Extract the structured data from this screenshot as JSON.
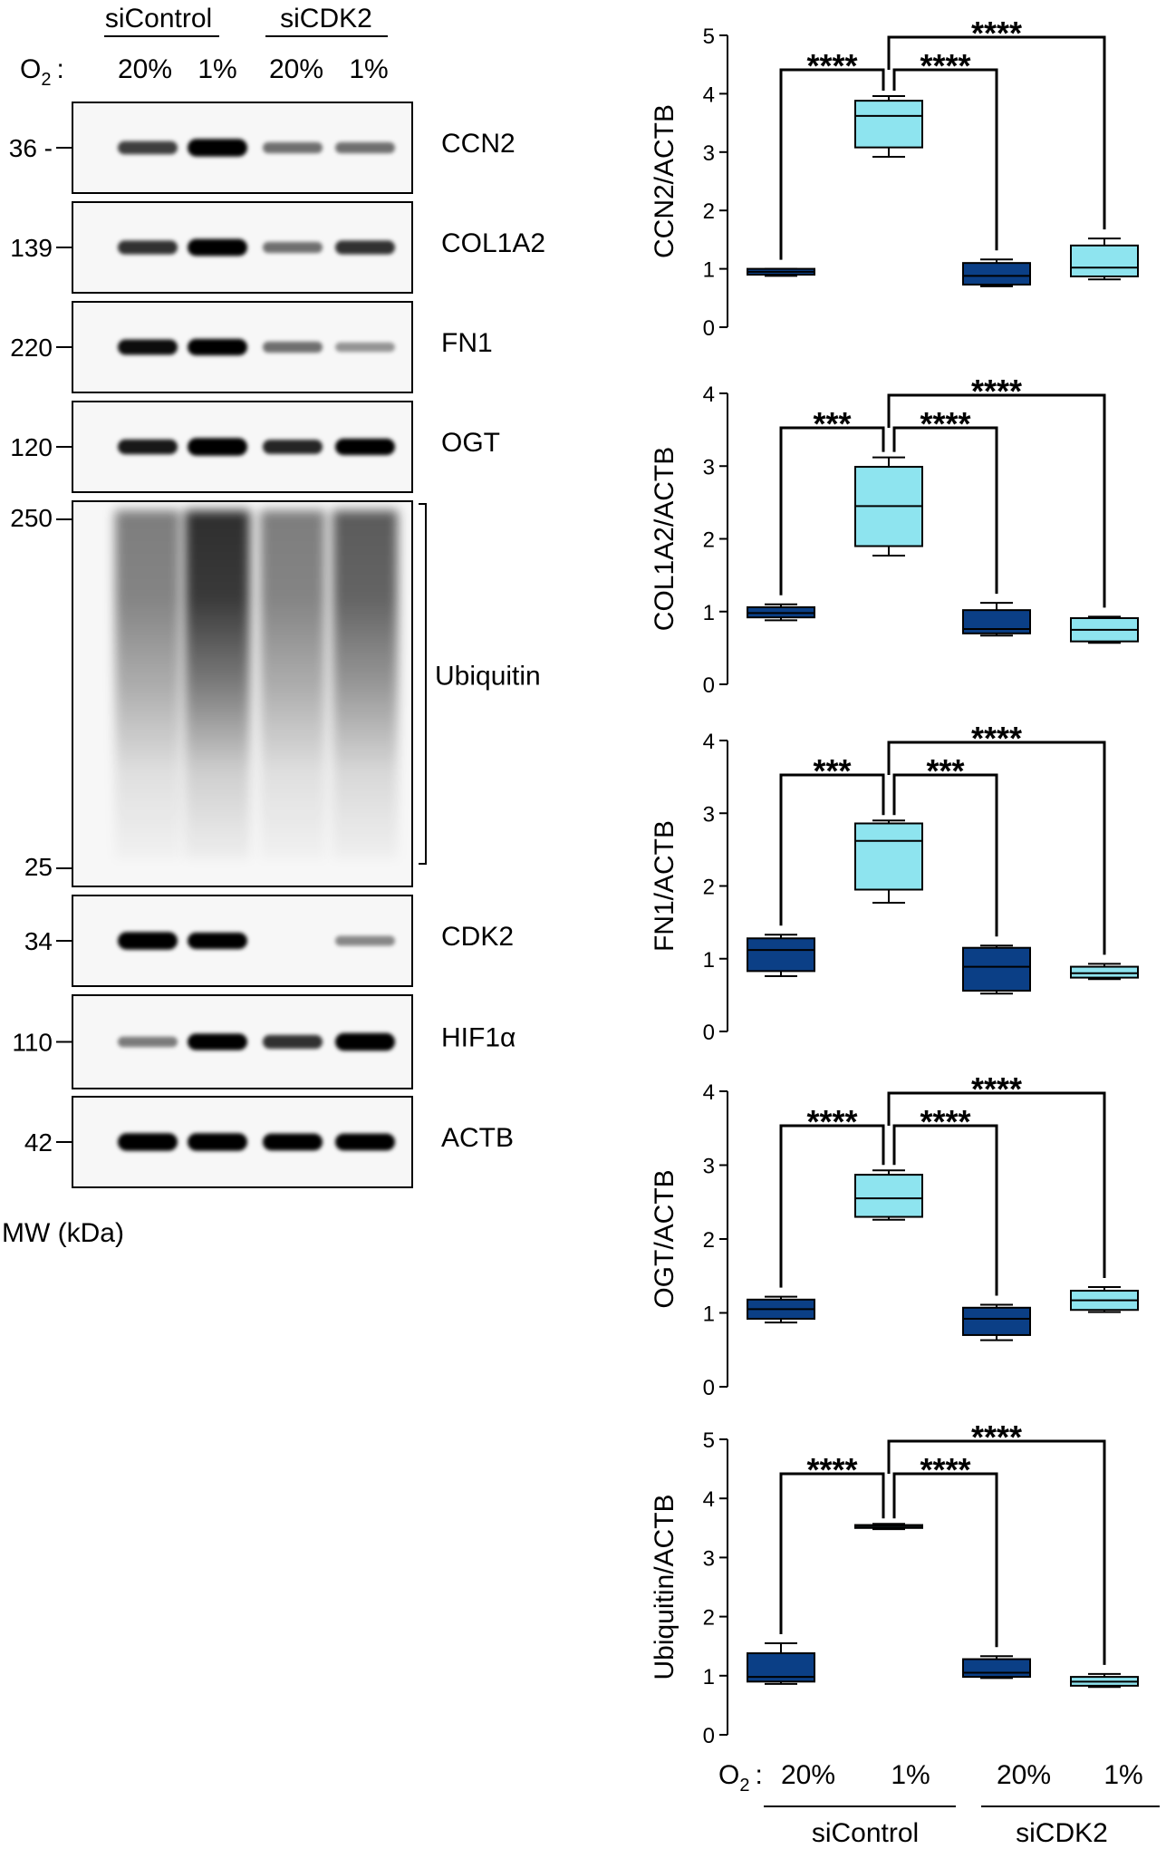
{
  "western_blot": {
    "groups": [
      "siControl",
      "siCDK2"
    ],
    "o2_label_main": "O",
    "o2_label_sub": "2",
    "o2_label_colon": ":",
    "lanes": [
      "20%",
      "1%",
      "20%",
      "1%"
    ],
    "mw_label": "MW (kDa)",
    "panels": [
      {
        "protein": "CCN2",
        "mw": "36 -",
        "intensities": [
          0.55,
          0.95,
          0.35,
          0.35
        ]
      },
      {
        "protein": "COL1A2",
        "mw": "139",
        "intensities": [
          0.6,
          0.9,
          0.35,
          0.6
        ]
      },
      {
        "protein": "FN1",
        "mw": "220",
        "intensities": [
          0.75,
          0.85,
          0.35,
          0.2
        ]
      },
      {
        "protein": "OGT",
        "mw": "120",
        "intensities": [
          0.7,
          0.95,
          0.65,
          0.85
        ]
      },
      {
        "protein": "Ubiquitin",
        "mw_top": "250",
        "mw_bottom": "25",
        "intensities": [
          0.55,
          0.9,
          0.55,
          0.7
        ]
      },
      {
        "protein": "CDK2",
        "mw": "34",
        "intensities": [
          0.95,
          0.85,
          0.0,
          0.25
        ]
      },
      {
        "protein": "HIF1α",
        "mw": "110",
        "intensities": [
          0.3,
          0.85,
          0.6,
          0.95
        ]
      },
      {
        "protein": "ACTB",
        "mw": "42",
        "intensities": [
          0.95,
          0.95,
          0.9,
          0.9
        ]
      }
    ]
  },
  "bottom_axis": {
    "o2_label_main": "O",
    "o2_label_sub": "2",
    "o2_label_colon": ":",
    "lanes": [
      "20%",
      "1%",
      "20%",
      "1%"
    ],
    "groups": [
      "siControl",
      "siCDK2"
    ]
  },
  "colors": {
    "dark_box": "#0b3f86",
    "light_box": "#8ee4ef"
  },
  "chart_data": [
    {
      "type": "box",
      "ylabel": "CCN2/ACTB",
      "ylim": [
        0,
        5
      ],
      "yticks": [
        "0",
        "1",
        "2",
        "3",
        "4",
        "5"
      ],
      "categories": [
        "siControl 20%",
        "siControl 1%",
        "siCDK2 20%",
        "siCDK2 1%"
      ],
      "boxes": [
        {
          "min": 0.88,
          "q1": 0.9,
          "median": 0.95,
          "q3": 1.0,
          "max": 1.0
        },
        {
          "min": 2.92,
          "q1": 3.08,
          "median": 3.62,
          "q3": 3.88,
          "max": 3.96
        },
        {
          "min": 0.7,
          "q1": 0.73,
          "median": 0.88,
          "q3": 1.1,
          "max": 1.16
        },
        {
          "min": 0.82,
          "q1": 0.87,
          "median": 1.02,
          "q3": 1.4,
          "max": 1.52
        }
      ],
      "significance": [
        {
          "from": 0,
          "to": 1,
          "label": "****"
        },
        {
          "from": 1,
          "to": 2,
          "label": "****"
        },
        {
          "from": 1,
          "to": 3,
          "label": "****"
        }
      ]
    },
    {
      "type": "box",
      "ylabel": "COL1A2/ACTB",
      "ylim": [
        0,
        4
      ],
      "yticks": [
        "0",
        "1",
        "2",
        "3",
        "4"
      ],
      "categories": [
        "siControl 20%",
        "siControl 1%",
        "siCDK2 20%",
        "siCDK2 1%"
      ],
      "boxes": [
        {
          "min": 0.88,
          "q1": 0.92,
          "median": 0.98,
          "q3": 1.06,
          "max": 1.1
        },
        {
          "min": 1.77,
          "q1": 1.9,
          "median": 2.45,
          "q3": 2.99,
          "max": 3.12
        },
        {
          "min": 0.67,
          "q1": 0.7,
          "median": 0.76,
          "q3": 1.02,
          "max": 1.12
        },
        {
          "min": 0.57,
          "q1": 0.59,
          "median": 0.75,
          "q3": 0.91,
          "max": 0.93
        }
      ],
      "significance": [
        {
          "from": 0,
          "to": 1,
          "label": "***"
        },
        {
          "from": 1,
          "to": 2,
          "label": "****"
        },
        {
          "from": 1,
          "to": 3,
          "label": "****"
        }
      ]
    },
    {
      "type": "box",
      "ylabel": "FN1/ACTB",
      "ylim": [
        0,
        4
      ],
      "yticks": [
        "0",
        "1",
        "2",
        "3",
        "4"
      ],
      "categories": [
        "siControl 20%",
        "siControl 1%",
        "siCDK2 20%",
        "siCDK2 1%"
      ],
      "boxes": [
        {
          "min": 0.76,
          "q1": 0.83,
          "median": 1.12,
          "q3": 1.28,
          "max": 1.33
        },
        {
          "min": 1.77,
          "q1": 1.95,
          "median": 2.62,
          "q3": 2.86,
          "max": 2.9
        },
        {
          "min": 0.52,
          "q1": 0.56,
          "median": 0.89,
          "q3": 1.15,
          "max": 1.18
        },
        {
          "min": 0.72,
          "q1": 0.74,
          "median": 0.8,
          "q3": 0.89,
          "max": 0.93
        }
      ],
      "significance": [
        {
          "from": 0,
          "to": 1,
          "label": "***"
        },
        {
          "from": 1,
          "to": 2,
          "label": "***"
        },
        {
          "from": 1,
          "to": 3,
          "label": "****"
        }
      ]
    },
    {
      "type": "box",
      "ylabel": "OGT/ACTB",
      "ylim": [
        0,
        4
      ],
      "yticks": [
        "0",
        "1",
        "2",
        "3",
        "4"
      ],
      "categories": [
        "siControl 20%",
        "siControl 1%",
        "siCDK2 20%",
        "siCDK2 1%"
      ],
      "boxes": [
        {
          "min": 0.87,
          "q1": 0.92,
          "median": 1.05,
          "q3": 1.18,
          "max": 1.22
        },
        {
          "min": 2.26,
          "q1": 2.3,
          "median": 2.55,
          "q3": 2.87,
          "max": 2.93
        },
        {
          "min": 0.63,
          "q1": 0.7,
          "median": 0.92,
          "q3": 1.07,
          "max": 1.11
        },
        {
          "min": 1.01,
          "q1": 1.04,
          "median": 1.17,
          "q3": 1.3,
          "max": 1.35
        }
      ],
      "significance": [
        {
          "from": 0,
          "to": 1,
          "label": "****"
        },
        {
          "from": 1,
          "to": 2,
          "label": "****"
        },
        {
          "from": 1,
          "to": 3,
          "label": "****"
        }
      ]
    },
    {
      "type": "box",
      "ylabel": "Ubiquitin/ACTB",
      "ylim": [
        0,
        5
      ],
      "yticks": [
        "0",
        "1",
        "2",
        "3",
        "4",
        "5"
      ],
      "categories": [
        "siControl 20%",
        "siControl 1%",
        "siCDK2 20%",
        "siCDK2 1%"
      ],
      "boxes": [
        {
          "min": 0.86,
          "q1": 0.9,
          "median": 0.98,
          "q3": 1.38,
          "max": 1.55
        },
        {
          "min": 3.48,
          "q1": 3.5,
          "median": 3.53,
          "q3": 3.55,
          "max": 3.57
        },
        {
          "min": 0.96,
          "q1": 0.98,
          "median": 1.05,
          "q3": 1.28,
          "max": 1.33
        },
        {
          "min": 0.81,
          "q1": 0.83,
          "median": 0.9,
          "q3": 0.98,
          "max": 1.03
        }
      ],
      "significance": [
        {
          "from": 0,
          "to": 1,
          "label": "****"
        },
        {
          "from": 1,
          "to": 2,
          "label": "****"
        },
        {
          "from": 1,
          "to": 3,
          "label": "****"
        }
      ]
    }
  ]
}
